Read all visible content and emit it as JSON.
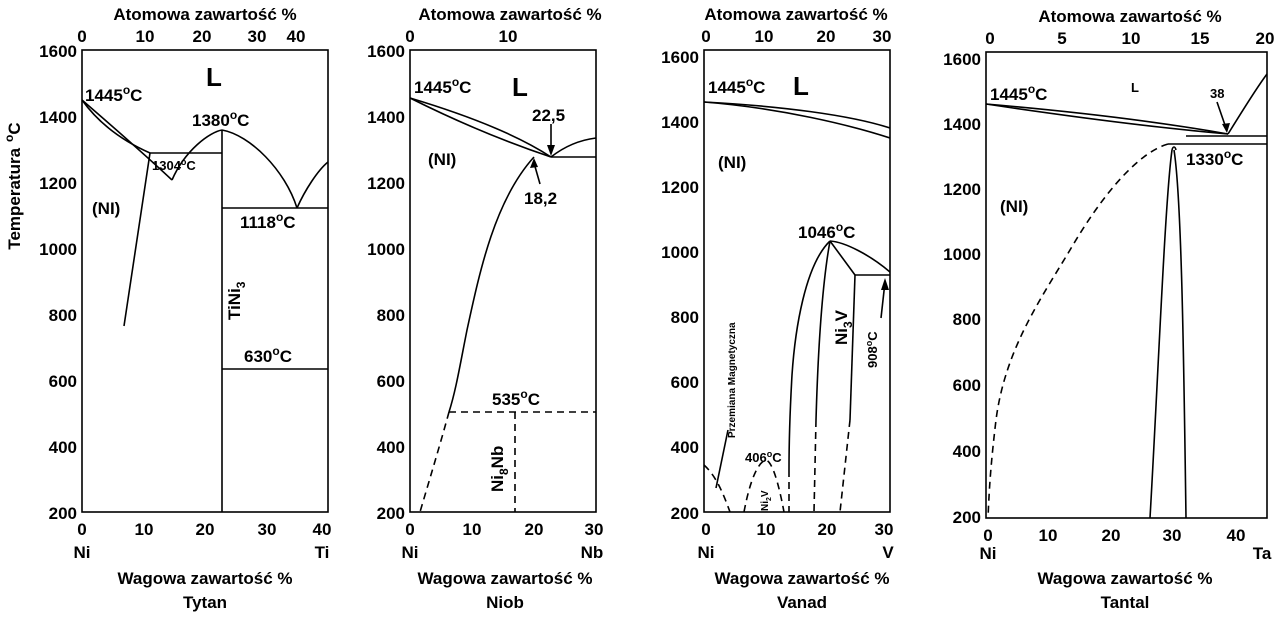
{
  "y_axis": {
    "title": "Temperatura",
    "unit_sup": "o",
    "unit_suffix": "C",
    "ticks": [
      "1600",
      "1400",
      "1200",
      "1000",
      "800",
      "600",
      "400",
      "200"
    ]
  },
  "top_axis_title": "Atomowa zawartość %",
  "bottom_axis_title": "Wagowa zawartość %",
  "panels": [
    {
      "element": "Tytan",
      "left_symbol": "Ni",
      "right_symbol": "Ti",
      "top_ticks": [
        "0",
        "10",
        "20",
        "30",
        "40"
      ],
      "bottom_ticks": [
        "0",
        "10",
        "20",
        "30",
        "40"
      ],
      "labels": {
        "melting": "1445",
        "liquid": "L",
        "eutectic_max": "1380",
        "eutectic1": "1304",
        "eutectic2": "1118",
        "phase_solid": "(NI)",
        "compound": "TiNi",
        "compound_sub": "3",
        "transition": "630"
      }
    },
    {
      "element": "Niob",
      "left_symbol": "Ni",
      "right_symbol": "Nb",
      "top_ticks": [
        "0",
        "10"
      ],
      "bottom_ticks": [
        "0",
        "10",
        "20",
        "30"
      ],
      "labels": {
        "melting": "1445",
        "liquid": "L",
        "liquid_point": "22,5",
        "solid_point": "18,2",
        "phase_solid": "(NI)",
        "transition": "535",
        "compound": "Ni",
        "compound_sub": "8",
        "compound_suffix": "Nb"
      }
    },
    {
      "element": "Vanad",
      "left_symbol": "Ni",
      "right_symbol": "V",
      "top_ticks": [
        "0",
        "10",
        "20",
        "30"
      ],
      "bottom_ticks": [
        "0",
        "10",
        "20",
        "30"
      ],
      "labels": {
        "melting": "1445",
        "liquid": "L",
        "phase_solid": "(NI)",
        "max_temp": "1046",
        "compound": "Ni",
        "compound_sub": "3",
        "compound_suffix": "V",
        "peritectoid": "908",
        "magnetic": "Przemiana Magnetyczna",
        "ordering": "406",
        "ni2v": "Ni",
        "ni2v_sub": "2",
        "ni2v_suffix": "V"
      }
    },
    {
      "element": "Tantal",
      "left_symbol": "Ni",
      "right_symbol": "Ta",
      "top_ticks": [
        "0",
        "5",
        "10",
        "15",
        "20"
      ],
      "bottom_ticks": [
        "0",
        "10",
        "20",
        "30",
        "40"
      ],
      "labels": {
        "melting": "1445",
        "liquid": "L",
        "liquid_point": "38",
        "phase_solid": "(NI)",
        "eutectic": "1330"
      }
    }
  ]
}
